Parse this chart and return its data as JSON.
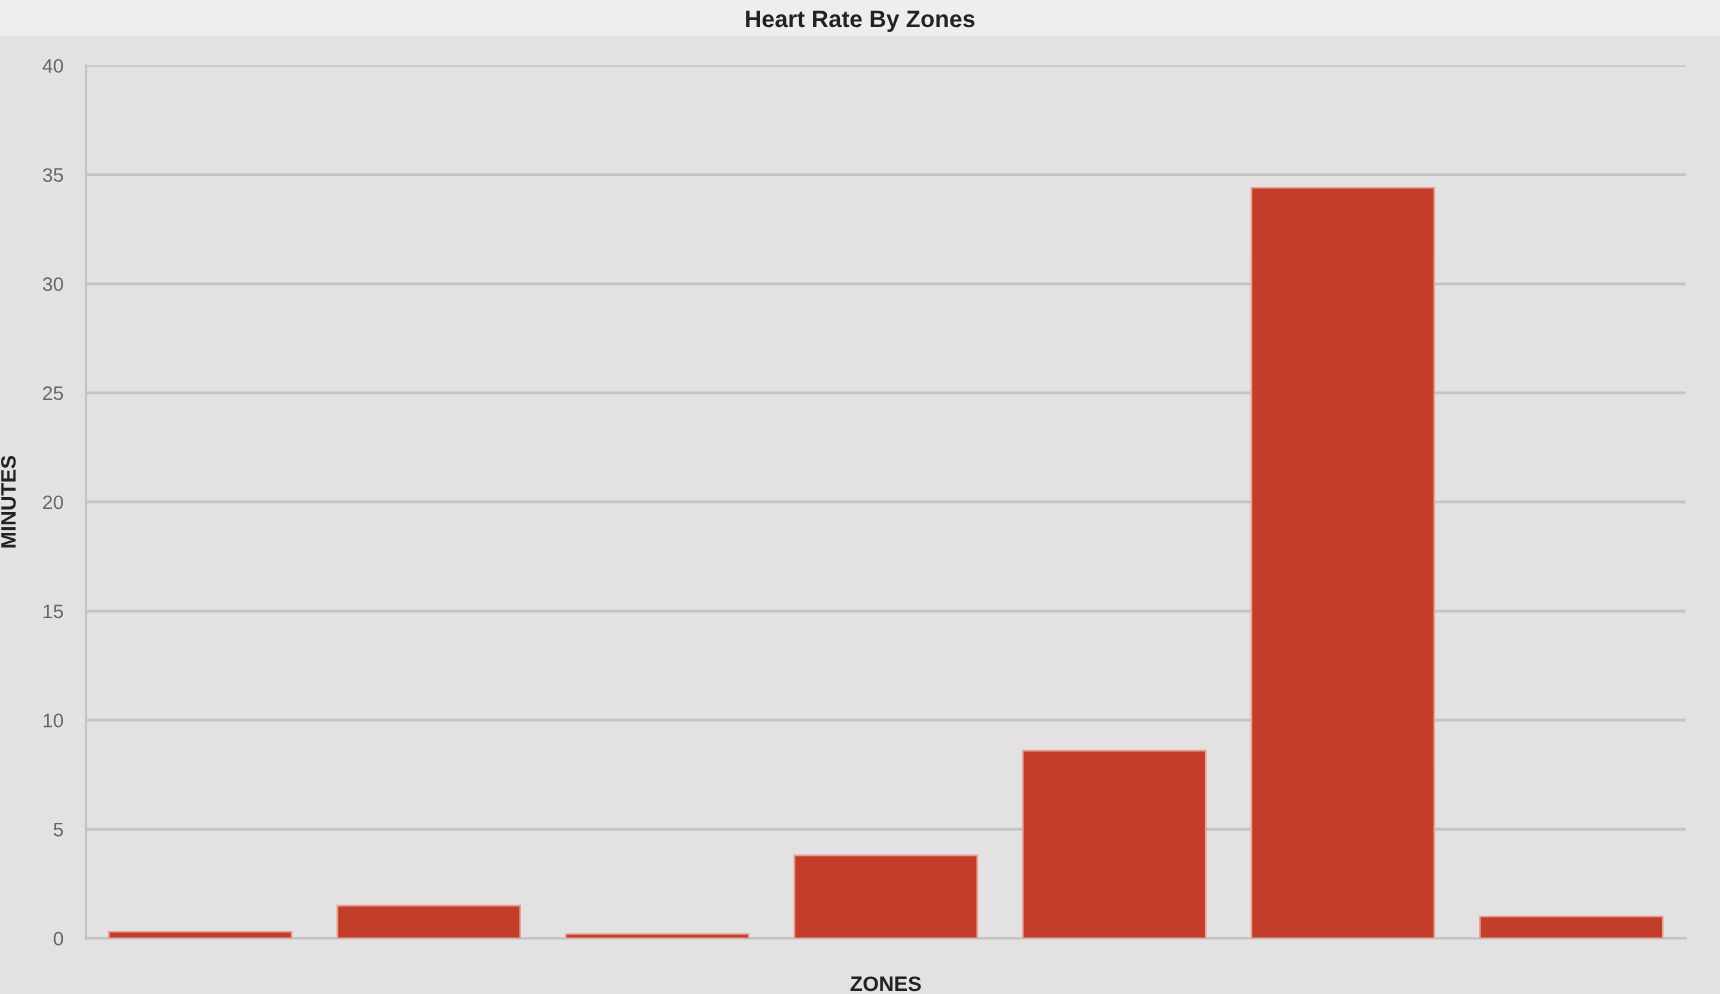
{
  "chart_data": {
    "type": "bar",
    "title": "Heart Rate By Zones",
    "xlabel": "ZONES",
    "ylabel": "MINUTES",
    "categories": [
      null,
      null,
      null,
      null,
      null,
      null,
      null
    ],
    "values": [
      0.3,
      1.5,
      0.2,
      3.8,
      8.6,
      34.4,
      1
    ],
    "color": "#c23e2a",
    "ylim": [
      0,
      40
    ],
    "yticks": [
      0,
      5,
      10,
      15,
      20,
      25,
      30,
      35,
      40
    ],
    "grid": "y",
    "legend": false
  }
}
